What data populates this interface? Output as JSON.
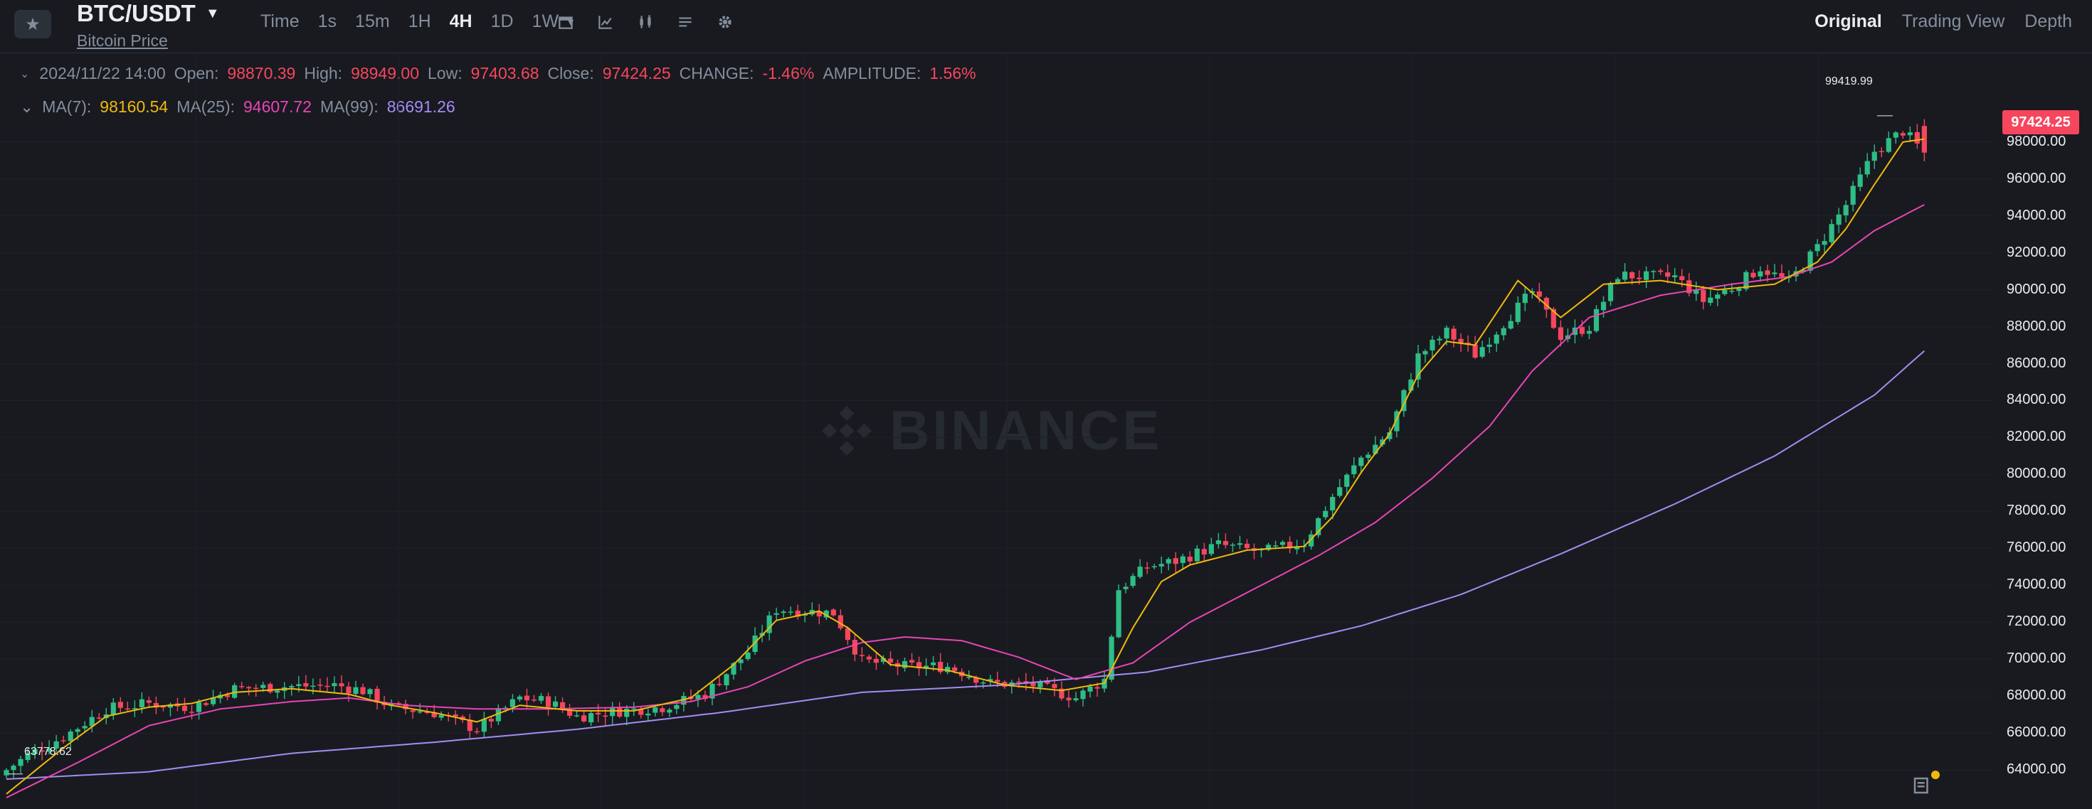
{
  "header": {
    "pair": "BTC/USDT",
    "subtitle": "Bitcoin Price",
    "intervals": [
      "Time",
      "1s",
      "15m",
      "1H",
      "4H",
      "1D",
      "1W"
    ],
    "active_interval": "4H",
    "tool_icons": [
      "calendar-icon",
      "indicator-icon",
      "candle-type-icon",
      "layout-icon",
      "settings-icon"
    ],
    "view_tabs": [
      "Original",
      "Trading View",
      "Depth"
    ],
    "active_view": "Original"
  },
  "info": {
    "datetime": "2024/11/22 14:00",
    "open_label": "Open:",
    "open": "98870.39",
    "high_label": "High:",
    "high": "98949.00",
    "low_label": "Low:",
    "low": "97403.68",
    "close_label": "Close:",
    "close": "97424.25",
    "change_label": "CHANGE:",
    "change": "-1.46%",
    "amplitude_label": "AMPLITUDE:",
    "amplitude": "1.56%"
  },
  "ma": {
    "ma7_label": "MA(7):",
    "ma7": "98160.54",
    "ma25_label": "MA(25):",
    "ma25": "94607.72",
    "ma99_label": "MA(99):",
    "ma99": "86691.26"
  },
  "watermark": "BINANCE",
  "colors": {
    "up": "#2ebd85",
    "down": "#f6465d",
    "ma7": "#f0b90b",
    "ma25": "#e945b5",
    "ma99": "#a58cf2",
    "bg": "#181a20"
  },
  "chart_data": {
    "type": "candlestick",
    "y_axis_ticks": [
      "98000.00",
      "96000.00",
      "94000.00",
      "92000.00",
      "90000.00",
      "88000.00",
      "86000.00",
      "84000.00",
      "82000.00",
      "80000.00",
      "78000.00",
      "76000.00",
      "74000.00",
      "72000.00",
      "70000.00",
      "68000.00",
      "66000.00",
      "64000.00"
    ],
    "ylim": [
      62000,
      99800
    ],
    "last_price": "97424.25",
    "high_marker": "99419.99",
    "low_marker": "63778.62",
    "close_anchors": [
      [
        0,
        64000
      ],
      [
        3,
        64800
      ],
      [
        8,
        65800
      ],
      [
        14,
        67300
      ],
      [
        20,
        67600
      ],
      [
        26,
        67400
      ],
      [
        32,
        68400
      ],
      [
        38,
        68500
      ],
      [
        46,
        68600
      ],
      [
        50,
        68300
      ],
      [
        54,
        67400
      ],
      [
        60,
        67100
      ],
      [
        66,
        66200
      ],
      [
        72,
        67900
      ],
      [
        76,
        67700
      ],
      [
        80,
        66900
      ],
      [
        86,
        67200
      ],
      [
        92,
        67400
      ],
      [
        98,
        68100
      ],
      [
        104,
        70400
      ],
      [
        108,
        72700
      ],
      [
        112,
        72600
      ],
      [
        116,
        72500
      ],
      [
        120,
        69900
      ],
      [
        126,
        69600
      ],
      [
        132,
        69600
      ],
      [
        138,
        68700
      ],
      [
        144,
        68600
      ],
      [
        150,
        67900
      ],
      [
        154,
        68900
      ],
      [
        156,
        73800
      ],
      [
        160,
        75000
      ],
      [
        164,
        75300
      ],
      [
        170,
        76200
      ],
      [
        176,
        75800
      ],
      [
        182,
        76300
      ],
      [
        186,
        78800
      ],
      [
        190,
        80900
      ],
      [
        194,
        82300
      ],
      [
        198,
        86400
      ],
      [
        202,
        87700
      ],
      [
        206,
        86500
      ],
      [
        210,
        88200
      ],
      [
        214,
        89900
      ],
      [
        218,
        87500
      ],
      [
        222,
        88000
      ],
      [
        226,
        90800
      ],
      [
        230,
        90700
      ],
      [
        234,
        90700
      ],
      [
        238,
        89400
      ],
      [
        242,
        90100
      ],
      [
        246,
        91200
      ],
      [
        250,
        90400
      ],
      [
        254,
        92300
      ],
      [
        258,
        94600
      ],
      [
        262,
        97500
      ],
      [
        266,
        98600
      ],
      [
        269,
        97424
      ]
    ],
    "ma7_anchors": [
      [
        0,
        62700
      ],
      [
        8,
        65200
      ],
      [
        14,
        66900
      ],
      [
        20,
        67400
      ],
      [
        26,
        67600
      ],
      [
        32,
        68200
      ],
      [
        40,
        68400
      ],
      [
        48,
        68100
      ],
      [
        54,
        67500
      ],
      [
        60,
        67100
      ],
      [
        66,
        66600
      ],
      [
        72,
        67500
      ],
      [
        80,
        67200
      ],
      [
        88,
        67200
      ],
      [
        96,
        67900
      ],
      [
        102,
        69700
      ],
      [
        108,
        72100
      ],
      [
        114,
        72600
      ],
      [
        118,
        71700
      ],
      [
        124,
        69700
      ],
      [
        132,
        69400
      ],
      [
        140,
        68600
      ],
      [
        148,
        68300
      ],
      [
        154,
        68700
      ],
      [
        158,
        71700
      ],
      [
        162,
        74200
      ],
      [
        166,
        75100
      ],
      [
        174,
        75900
      ],
      [
        182,
        76100
      ],
      [
        186,
        77700
      ],
      [
        190,
        80100
      ],
      [
        194,
        82200
      ],
      [
        198,
        85400
      ],
      [
        202,
        87200
      ],
      [
        206,
        87000
      ],
      [
        212,
        90500
      ],
      [
        218,
        88500
      ],
      [
        224,
        90300
      ],
      [
        232,
        90500
      ],
      [
        240,
        90000
      ],
      [
        248,
        90300
      ],
      [
        254,
        91500
      ],
      [
        258,
        93300
      ],
      [
        262,
        95700
      ],
      [
        266,
        98000
      ],
      [
        269,
        98160
      ]
    ],
    "ma25_anchors": [
      [
        0,
        62500
      ],
      [
        10,
        64400
      ],
      [
        20,
        66400
      ],
      [
        30,
        67300
      ],
      [
        40,
        67700
      ],
      [
        48,
        67900
      ],
      [
        56,
        67500
      ],
      [
        66,
        67300
      ],
      [
        76,
        67300
      ],
      [
        88,
        67400
      ],
      [
        96,
        67700
      ],
      [
        104,
        68500
      ],
      [
        112,
        69900
      ],
      [
        120,
        70900
      ],
      [
        126,
        71200
      ],
      [
        134,
        71000
      ],
      [
        142,
        70100
      ],
      [
        150,
        68900
      ],
      [
        158,
        69800
      ],
      [
        166,
        72000
      ],
      [
        174,
        73600
      ],
      [
        184,
        75600
      ],
      [
        192,
        77400
      ],
      [
        200,
        79800
      ],
      [
        208,
        82600
      ],
      [
        214,
        85600
      ],
      [
        222,
        88500
      ],
      [
        232,
        89700
      ],
      [
        242,
        90300
      ],
      [
        250,
        90700
      ],
      [
        256,
        91500
      ],
      [
        262,
        93200
      ],
      [
        269,
        94608
      ]
    ],
    "ma99_anchors": [
      [
        0,
        63500
      ],
      [
        20,
        63900
      ],
      [
        40,
        64900
      ],
      [
        60,
        65500
      ],
      [
        80,
        66200
      ],
      [
        100,
        67100
      ],
      [
        120,
        68200
      ],
      [
        140,
        68600
      ],
      [
        160,
        69300
      ],
      [
        176,
        70500
      ],
      [
        190,
        71800
      ],
      [
        204,
        73500
      ],
      [
        218,
        75700
      ],
      [
        234,
        78400
      ],
      [
        248,
        81000
      ],
      [
        262,
        84300
      ],
      [
        269,
        86691
      ]
    ]
  }
}
